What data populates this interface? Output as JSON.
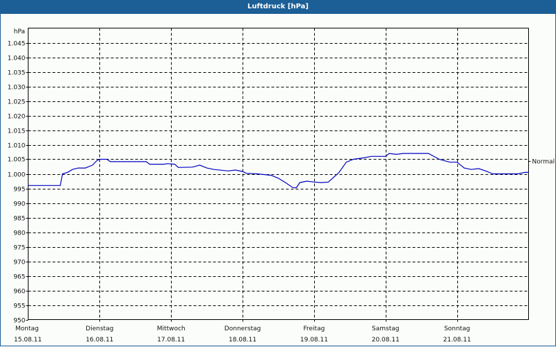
{
  "window": {
    "title": "Luftdruck [hPa]"
  },
  "colors": {
    "titlebar": "#1c5e96",
    "line": "#0000c0",
    "grid": "#000000",
    "background": "#fbfdfb"
  },
  "chart_data": {
    "type": "line",
    "title": "Luftdruck [hPa]",
    "ylabel": "hPa",
    "xlabel": "",
    "ylim": [
      950,
      1050
    ],
    "grid": true,
    "y_ticks": [
      "950",
      "955",
      "960",
      "965",
      "970",
      "975",
      "980",
      "985",
      "990",
      "995",
      "1.000",
      "1.005",
      "1.010",
      "1.015",
      "1.020",
      "1.025",
      "1.030",
      "1.035",
      "1.040",
      "1.045"
    ],
    "x_ticks": [
      {
        "day": "Montag",
        "date": "15.08.11"
      },
      {
        "day": "Dienstag",
        "date": "16.08.11"
      },
      {
        "day": "Mittwoch",
        "date": "17.08.11"
      },
      {
        "day": "Donnerstag",
        "date": "18.08.11"
      },
      {
        "day": "Freitag",
        "date": "19.08.11"
      },
      {
        "day": "Samstag",
        "date": "20.08.11"
      },
      {
        "day": "Sonntag",
        "date": "21.08.11"
      }
    ],
    "annotations": [
      {
        "label": "Normal",
        "y": 1004
      }
    ],
    "series": [
      {
        "name": "Luftdruck",
        "x_days": [
          0,
          0.45,
          0.48,
          0.55,
          0.62,
          0.7,
          0.8,
          0.9,
          0.96,
          1.0,
          1.1,
          1.15,
          1.3,
          1.5,
          1.65,
          1.7,
          1.9,
          1.95,
          2.05,
          2.1,
          2.3,
          2.4,
          2.5,
          2.6,
          2.8,
          2.9,
          3.0,
          3.05,
          3.2,
          3.4,
          3.5,
          3.6,
          3.7,
          3.75,
          3.8,
          3.9,
          4.0,
          4.1,
          4.2,
          4.35,
          4.45,
          4.55,
          4.7,
          4.8,
          5.0,
          5.05,
          5.15,
          5.25,
          5.3,
          5.4,
          5.6,
          5.75,
          5.9,
          6.0,
          6.1,
          6.2,
          6.3,
          6.4,
          6.5,
          6.6,
          6.7,
          6.85,
          6.95,
          7.0
        ],
        "values": [
          996,
          996,
          1000,
          1000.5,
          1001.5,
          1002,
          1002,
          1003,
          1004.5,
          1005,
          1005,
          1004.2,
          1004.2,
          1004.2,
          1004.2,
          1003.3,
          1003.3,
          1003.5,
          1003.3,
          1002.2,
          1002.3,
          1003,
          1002,
          1001.5,
          1001,
          1001.3,
          1000.8,
          1000.2,
          1000,
          999.5,
          998.5,
          997,
          995.3,
          995.2,
          997,
          997.5,
          997.2,
          997,
          997.2,
          1000.5,
          1004,
          1005,
          1005.5,
          1006,
          1006,
          1007,
          1006.7,
          1007,
          1007,
          1007,
          1007,
          1005,
          1004,
          1004,
          1002,
          1001.5,
          1001.8,
          1001,
          1000,
          1000,
          1000,
          1000,
          1000.5,
          1000.5
        ]
      }
    ]
  }
}
